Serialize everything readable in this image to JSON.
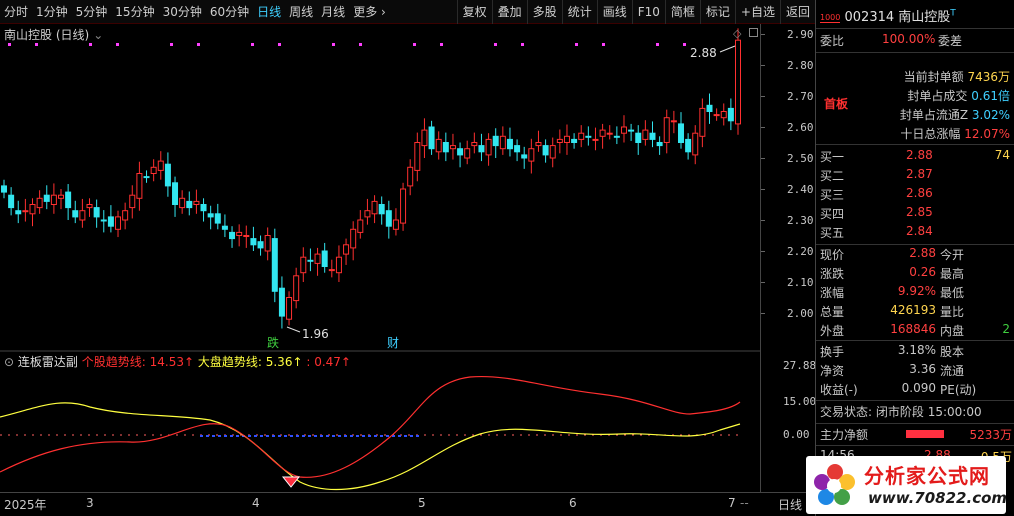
{
  "toolbar": {
    "periods": [
      "分时",
      "1分钟",
      "5分钟",
      "15分钟",
      "30分钟",
      "60分钟",
      "日线",
      "周线",
      "月线",
      "更多"
    ],
    "active": "日线",
    "more_arrow": "›",
    "tools": [
      "复权",
      "叠加",
      "多股",
      "统计",
      "画线",
      "F10",
      "简框",
      "标记",
      "+自选",
      "返回"
    ]
  },
  "chart": {
    "title": "南山控股 (日线)",
    "price_ticks": [
      "2.90",
      "2.80",
      "2.70",
      "2.60",
      "2.50",
      "2.40",
      "2.30",
      "2.20",
      "2.10",
      "2.00"
    ],
    "high_label": "2.88",
    "low_label": "1.96",
    "markers": [
      "跌",
      "财"
    ],
    "colors": {
      "up": "#ff3030",
      "down": "#33e6f0",
      "bg": "#000000"
    }
  },
  "indicator": {
    "name": "连板雷达副",
    "series": [
      {
        "label": "个股趋势线",
        "value": "14.53",
        "arrow": "↑",
        "color": "#ff3030"
      },
      {
        "label": "大盘趋势线",
        "value": "5.36",
        "arrow": "↑",
        "color": "#ffff40"
      },
      {
        "label": "",
        "value": "0.47",
        "arrow": "↑",
        "color": "#ff3030"
      }
    ],
    "axis_ticks": [
      "27.88",
      "15.00",
      "0.00"
    ]
  },
  "date_axis": {
    "labels": [
      "2025年",
      "3",
      "4",
      "5",
      "6",
      "7"
    ],
    "period": "日线"
  },
  "stock": {
    "logo": "1000",
    "code": "002314",
    "name": "南山控股",
    "wb_label": "委比",
    "wb_value": "100.00%",
    "wc_label": "委差",
    "tag": "首板",
    "stats": [
      {
        "label": "当前封单额",
        "value": "7436万",
        "color": "#ffd54f"
      },
      {
        "label": "封单占成交",
        "value": "0.61倍",
        "color": "#3fd0ff"
      },
      {
        "label": "封单占流通Z",
        "value": "3.02%",
        "color": "#3fd0ff"
      },
      {
        "label": "十日总涨幅",
        "value": "12.07%",
        "color": "#ff4040"
      }
    ],
    "bids": [
      {
        "label": "买一",
        "price": "2.88",
        "vol": "74"
      },
      {
        "label": "买二",
        "price": "2.87",
        "vol": ""
      },
      {
        "label": "买三",
        "price": "2.86",
        "vol": ""
      },
      {
        "label": "买四",
        "price": "2.85",
        "vol": ""
      },
      {
        "label": "买五",
        "price": "2.84",
        "vol": ""
      }
    ],
    "quote": [
      {
        "l1": "现价",
        "v1": "2.88",
        "c1": "#ff4040",
        "l2": "今开",
        "v2": ""
      },
      {
        "l1": "涨跌",
        "v1": "0.26",
        "c1": "#ff4040",
        "l2": "最高",
        "v2": ""
      },
      {
        "l1": "涨幅",
        "v1": "9.92%",
        "c1": "#ff4040",
        "l2": "最低",
        "v2": ""
      },
      {
        "l1": "总量",
        "v1": "426193",
        "c1": "#ffd54f",
        "l2": "量比",
        "v2": ""
      },
      {
        "l1": "外盘",
        "v1": "168846",
        "c1": "#ff4040",
        "l2": "内盘",
        "v2": "2"
      }
    ],
    "quote2": [
      {
        "l1": "换手",
        "v1": "3.18%",
        "l2": "股本"
      },
      {
        "l1": "净资",
        "v1": "3.36",
        "l2": "流通"
      },
      {
        "l1": "收益(-)",
        "v1": "0.090",
        "l2": "PE(动)"
      }
    ],
    "trade_status_label": "交易状态:",
    "trade_status_value": "闭市阶段 15:00:00",
    "net_label": "主力净额",
    "net_value": "5233万",
    "tick": {
      "time": "14:56",
      "price": "2.88",
      "vol": "0.5万"
    }
  },
  "watermark": {
    "line1": "分析家公式网",
    "line2": "www.70822.com"
  }
}
